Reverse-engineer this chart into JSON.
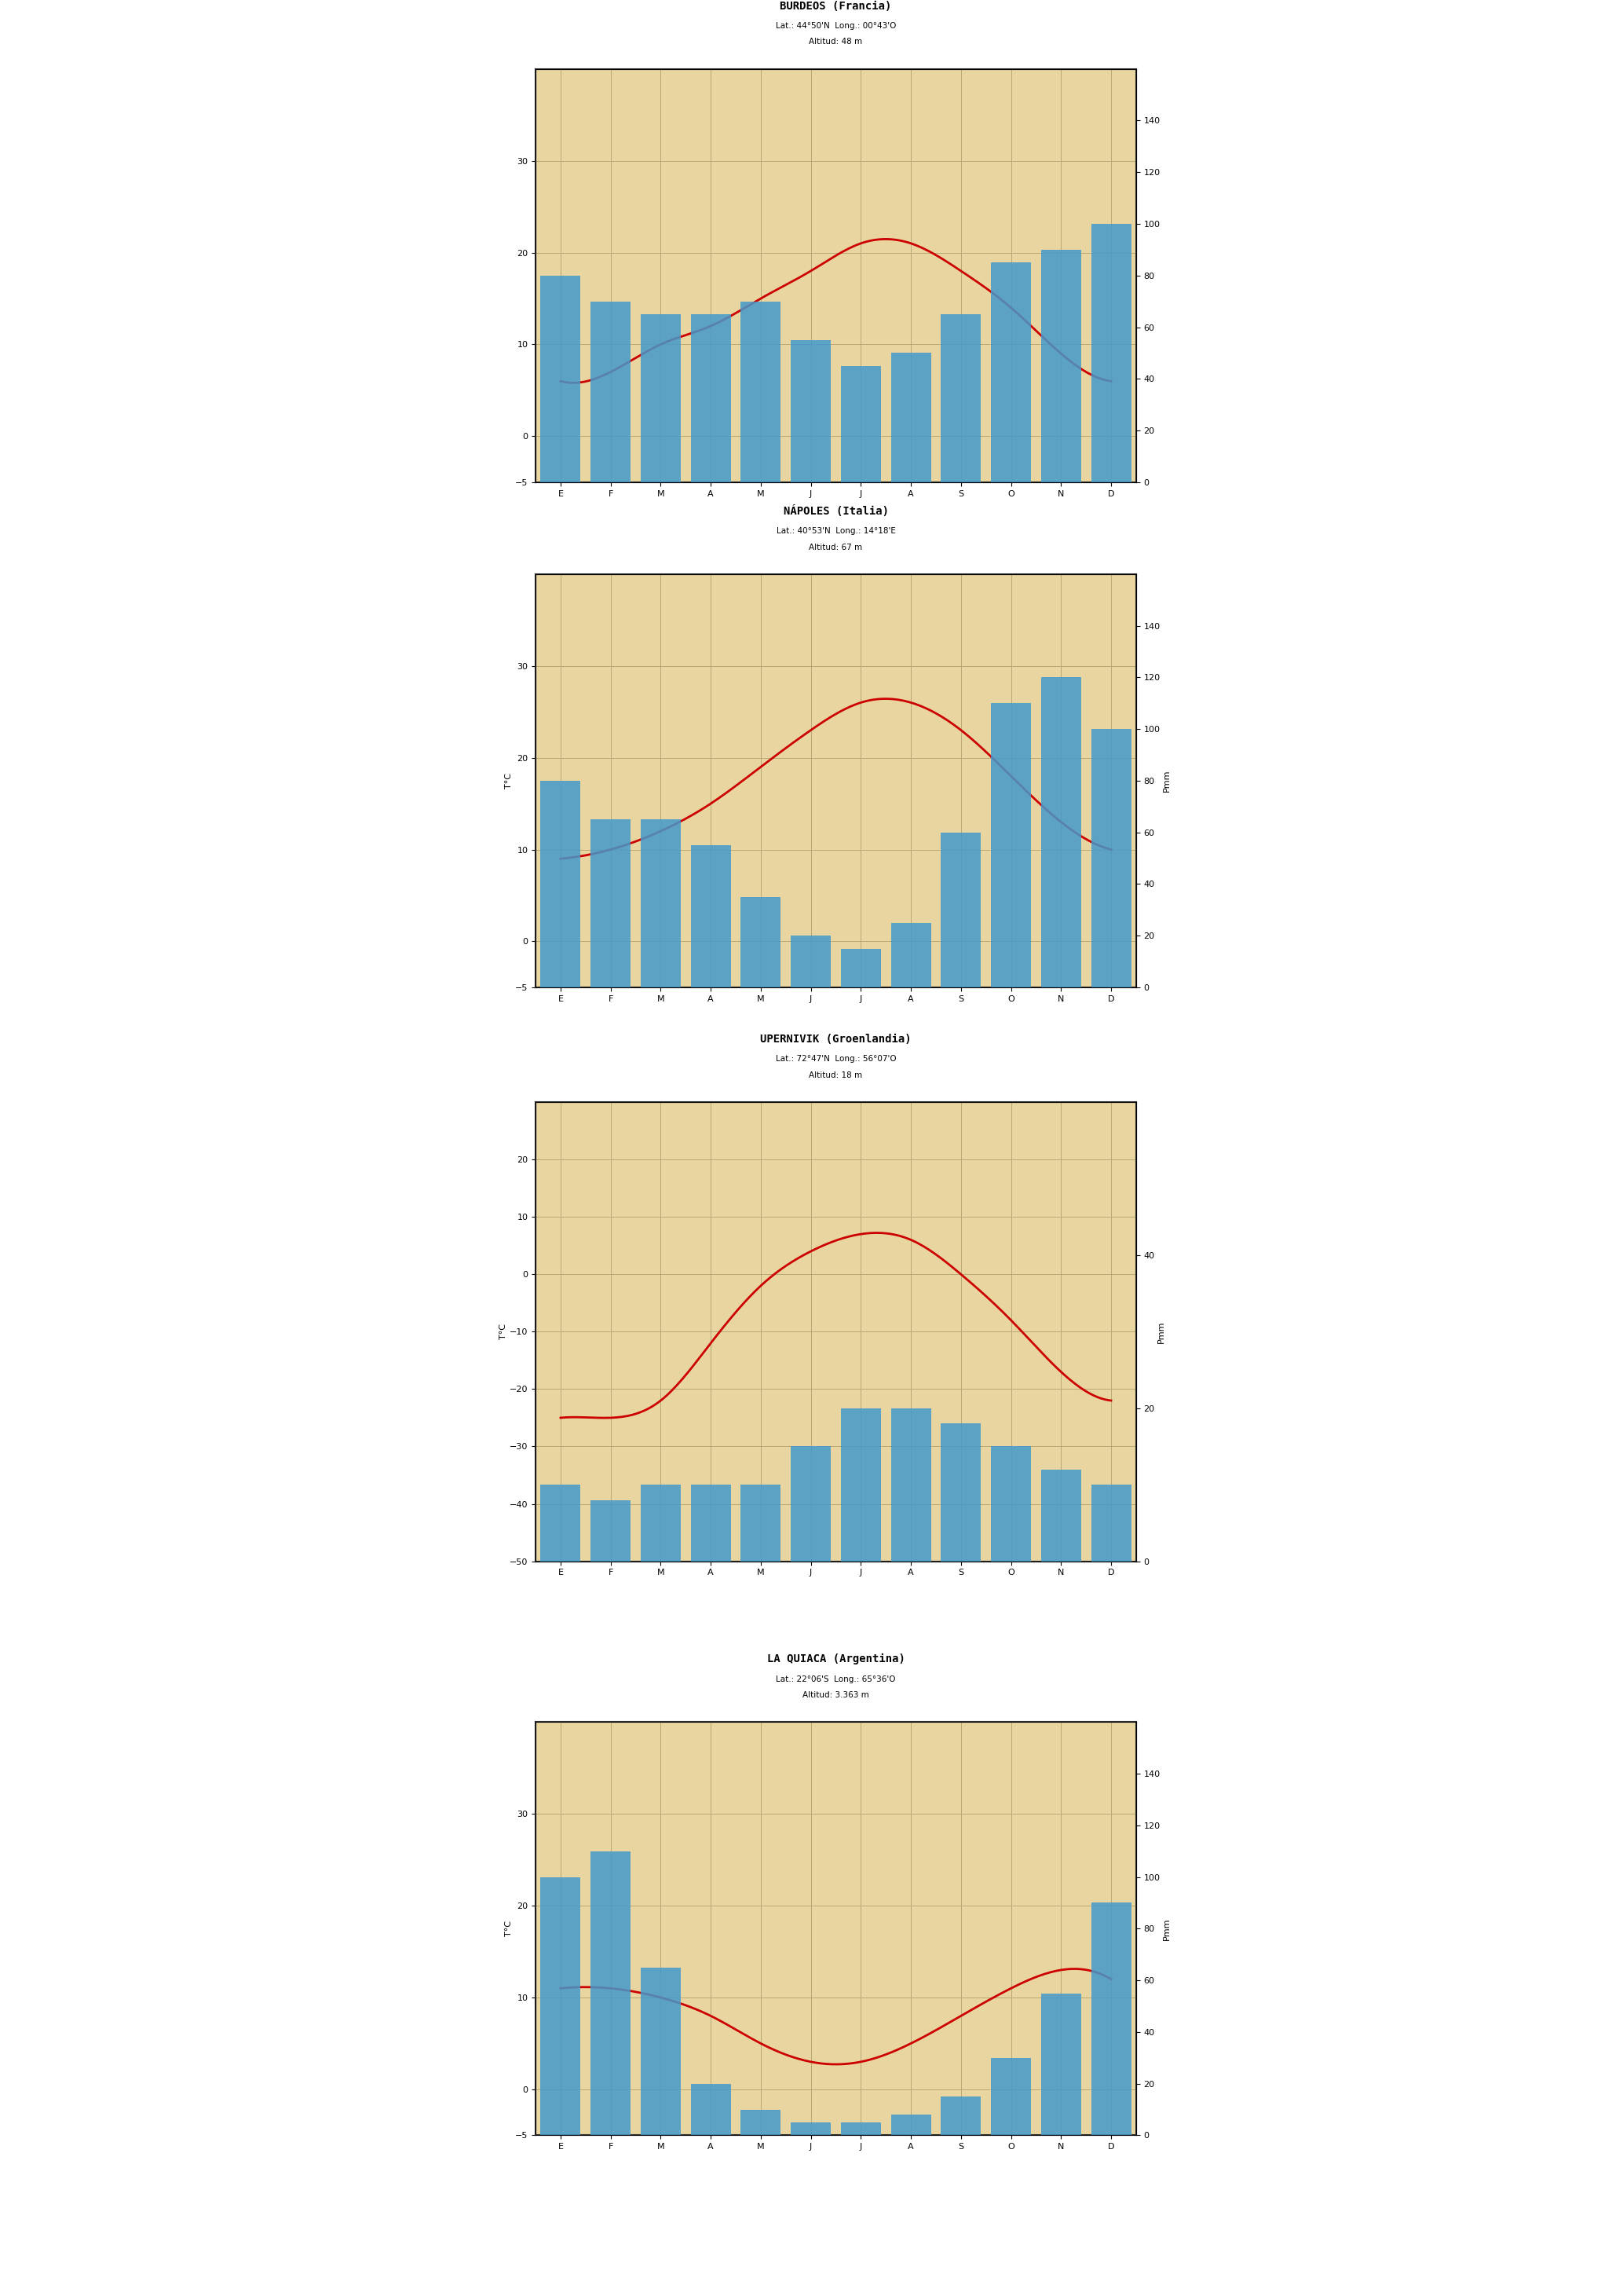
{
  "charts": [
    {
      "title": "BURDEOS (Francia)",
      "subtitle": "Lat.: 44°50'N  Long.: 00°43'O",
      "altitude": "Altitud: 48 m",
      "months": [
        "E",
        "F",
        "M",
        "A",
        "M",
        "J",
        "J",
        "A",
        "S",
        "O",
        "N",
        "D"
      ],
      "temp": [
        6,
        7,
        10,
        12,
        15,
        18,
        21,
        21,
        18,
        14,
        9,
        6
      ],
      "precip": [
        80,
        70,
        65,
        65,
        70,
        55,
        45,
        50,
        65,
        85,
        90,
        100
      ],
      "temp_ylim": [
        -5,
        40
      ],
      "precip_ylim": [
        0,
        160
      ],
      "temp_yticks": [
        -5,
        0,
        10,
        20,
        30
      ],
      "precip_yticks": [
        0,
        20,
        40,
        60,
        80,
        100,
        120,
        140
      ],
      "show_tc_label": false
    },
    {
      "title": "NÁPOLES (Italia)",
      "subtitle": "Lat.: 40°53'N  Long.: 14°18'E",
      "altitude": "Altitud: 67 m",
      "months": [
        "E",
        "F",
        "M",
        "A",
        "M",
        "J",
        "J",
        "A",
        "S",
        "O",
        "N",
        "D"
      ],
      "temp": [
        9,
        10,
        12,
        15,
        19,
        23,
        26,
        26,
        23,
        18,
        13,
        10
      ],
      "precip": [
        80,
        65,
        65,
        55,
        35,
        20,
        15,
        25,
        60,
        110,
        120,
        100
      ],
      "temp_ylim": [
        -5,
        40
      ],
      "precip_ylim": [
        0,
        160
      ],
      "temp_yticks": [
        -5,
        0,
        10,
        20,
        30
      ],
      "precip_yticks": [
        0,
        20,
        40,
        60,
        80,
        100,
        120,
        140
      ],
      "show_tc_label": true
    },
    {
      "title": "UPERNIVIK (Groenlandia)",
      "subtitle": "Lat.: 72°47'N  Long.: 56°07'O",
      "altitude": "Altitud: 18 m",
      "months": [
        "E",
        "F",
        "M",
        "A",
        "M",
        "J",
        "J",
        "A",
        "S",
        "O",
        "N",
        "D"
      ],
      "temp": [
        -25,
        -25,
        -22,
        -12,
        -2,
        4,
        7,
        6,
        0,
        -8,
        -17,
        -22
      ],
      "precip": [
        10,
        8,
        10,
        10,
        10,
        15,
        20,
        20,
        18,
        15,
        12,
        10
      ],
      "temp_ylim": [
        -50,
        30
      ],
      "precip_ylim": [
        0,
        60
      ],
      "temp_yticks": [
        -50,
        -40,
        -30,
        -20,
        -10,
        0,
        10,
        20
      ],
      "precip_yticks": [
        0,
        20,
        40
      ],
      "show_tc_label": true
    },
    {
      "title": "LA QUIACA (Argentina)",
      "subtitle": "Lat.: 22°06'S  Long.: 65°36'O",
      "altitude": "Altitud: 3.363 m",
      "months": [
        "E",
        "F",
        "M",
        "A",
        "M",
        "J",
        "J",
        "A",
        "S",
        "O",
        "N",
        "D"
      ],
      "temp": [
        11,
        11,
        10,
        8,
        5,
        3,
        3,
        5,
        8,
        11,
        13,
        12
      ],
      "precip": [
        100,
        110,
        65,
        20,
        10,
        5,
        5,
        8,
        15,
        30,
        55,
        90
      ],
      "temp_ylim": [
        -5,
        40
      ],
      "precip_ylim": [
        0,
        160
      ],
      "temp_yticks": [
        -5,
        0,
        10,
        20,
        30
      ],
      "precip_yticks": [
        0,
        20,
        40,
        60,
        80,
        100,
        120,
        140
      ],
      "show_tc_label": true
    }
  ],
  "bg_color": "#E8D5A0",
  "bar_color": "#4499CC",
  "line_color": "#CC0000",
  "grid_color": "#B8A878",
  "border_color": "#333333"
}
